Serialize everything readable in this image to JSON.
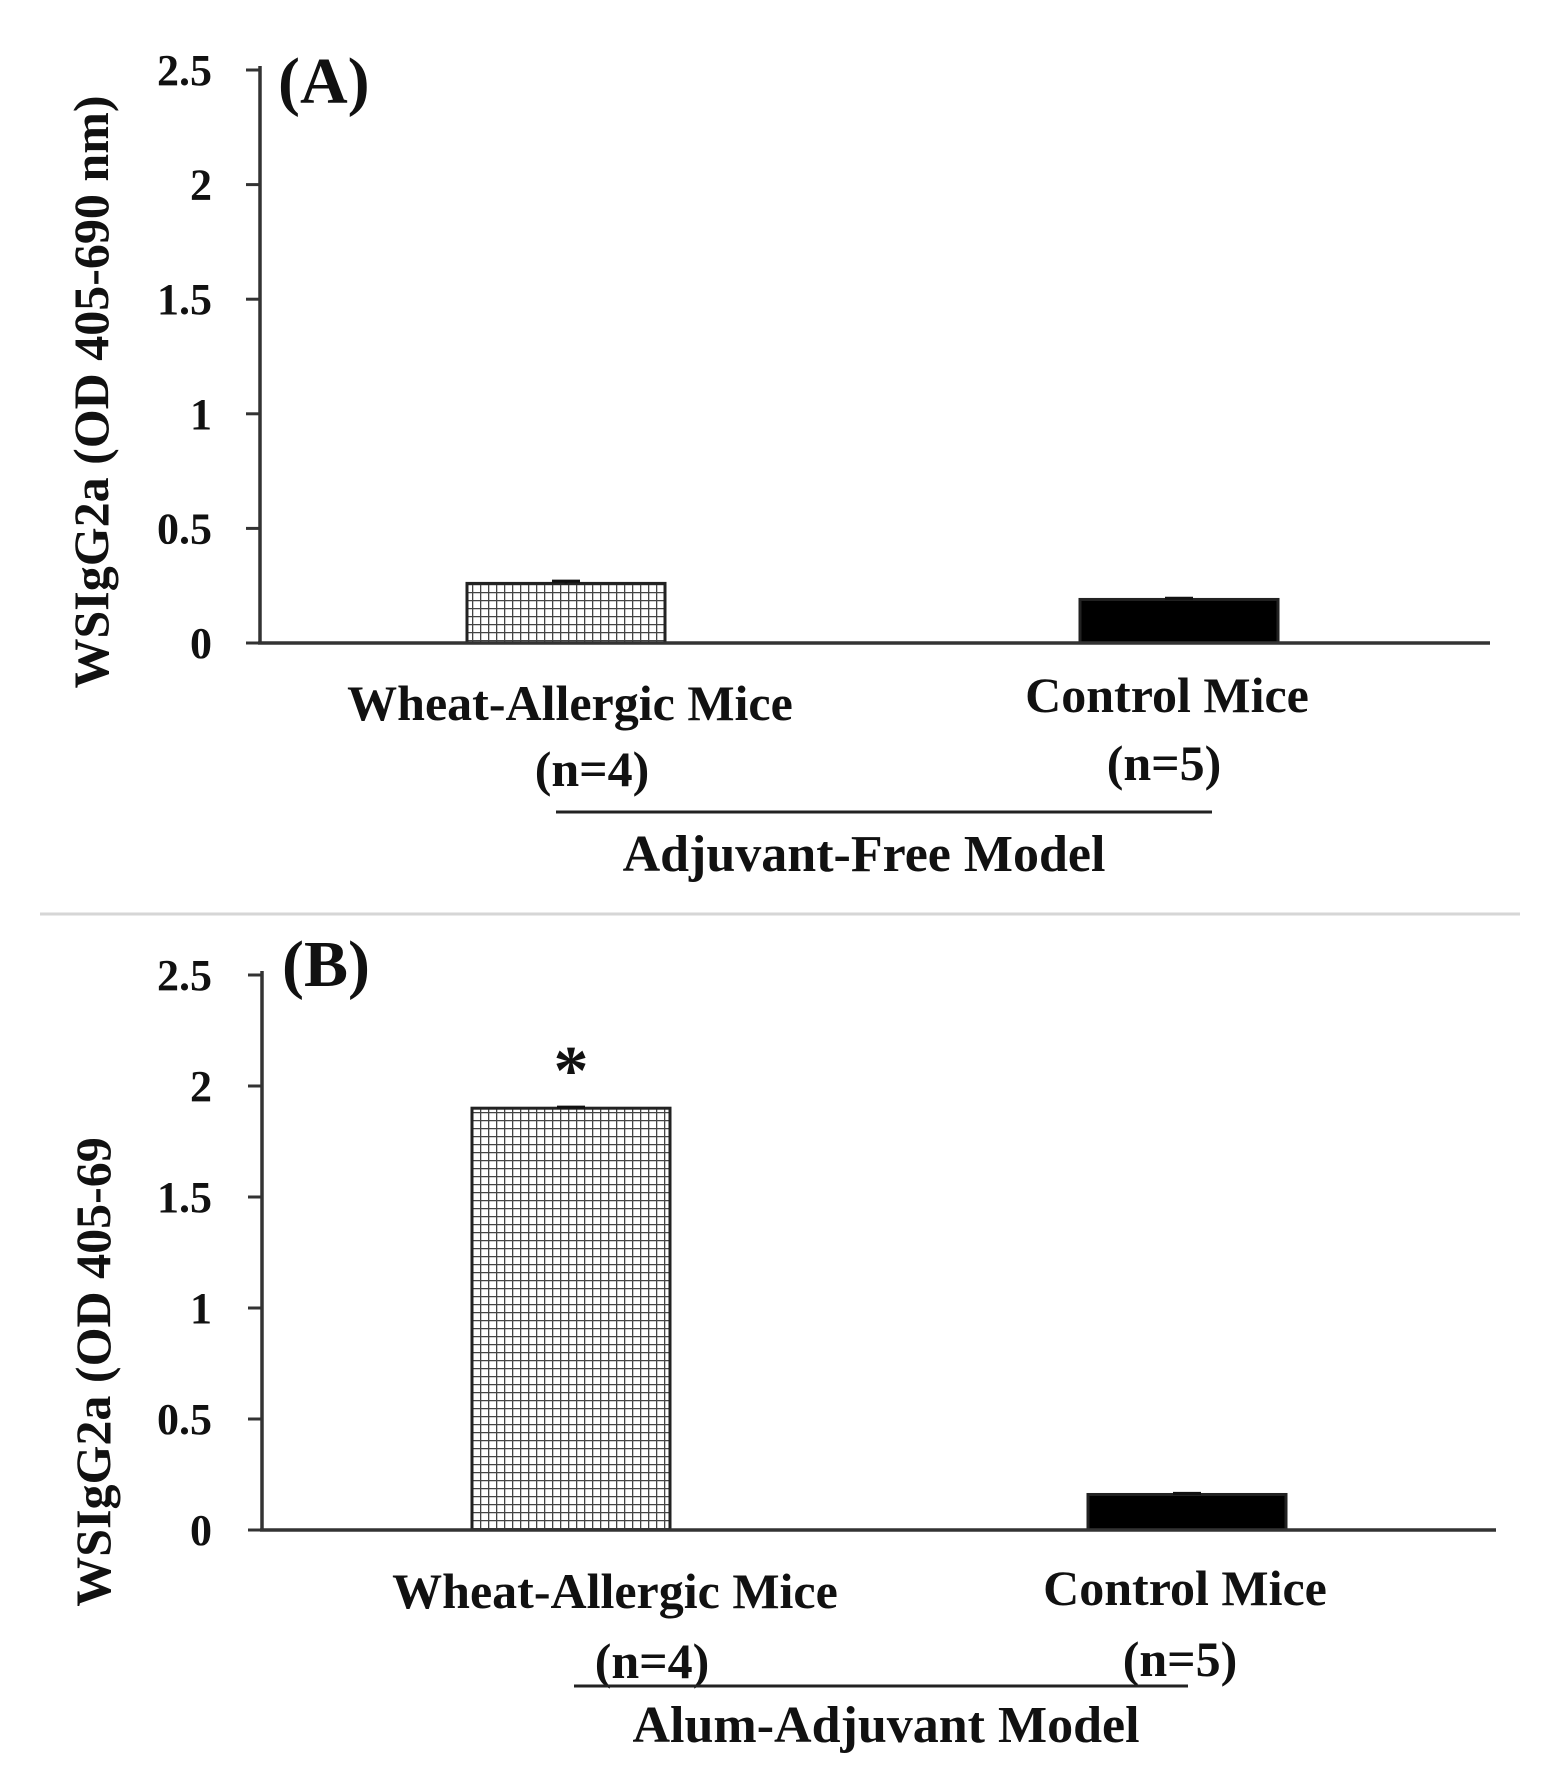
{
  "chart_data": [
    {
      "type": "bar",
      "panel_label": "(A)",
      "ylabel": "WSIgG2a (OD 405-690 nm)",
      "categories": [
        "Wheat-Allergic Mice",
        "Control  Mice"
      ],
      "sample_sizes": [
        "(n=4)",
        "(n=5)"
      ],
      "values": [
        0.26,
        0.19
      ],
      "errors": [
        0.01,
        0.005
      ],
      "ylim": [
        0,
        2.5
      ],
      "yticks": [
        0,
        0.5,
        1,
        1.5,
        2,
        2.5
      ],
      "ytick_labels": [
        "0",
        "0.5",
        "1",
        "1.5",
        "2",
        "2.5"
      ],
      "group_label": "Adjuvant-Free Model",
      "significance": [
        "",
        ""
      ],
      "bar_fills": [
        "grid",
        "solid"
      ],
      "colors": {
        "bar_solid": "#000000",
        "grid_fill": "#ffffff",
        "grid_line": "#444444",
        "axis": "#333333"
      }
    },
    {
      "type": "bar",
      "panel_label": "(B)",
      "ylabel": "WSIgG2a (OD 405-69",
      "categories": [
        "Wheat-Allergic Mice",
        "Control  Mice"
      ],
      "sample_sizes": [
        "(n=4)",
        "(n=5)"
      ],
      "values": [
        1.9,
        0.16
      ],
      "errors": [
        0.005,
        0.005
      ],
      "ylim": [
        0,
        2.5
      ],
      "yticks": [
        0,
        0.5,
        1,
        1.5,
        2,
        2.5
      ],
      "ytick_labels": [
        "0",
        "0.5",
        "1",
        "1.5",
        "2",
        "2.5"
      ],
      "group_label": "Alum-Adjuvant Model",
      "significance": [
        "*",
        ""
      ],
      "bar_fills": [
        "grid",
        "solid"
      ],
      "colors": {
        "bar_solid": "#000000",
        "grid_fill": "#ffffff",
        "grid_line": "#444444",
        "axis": "#333333"
      }
    }
  ]
}
